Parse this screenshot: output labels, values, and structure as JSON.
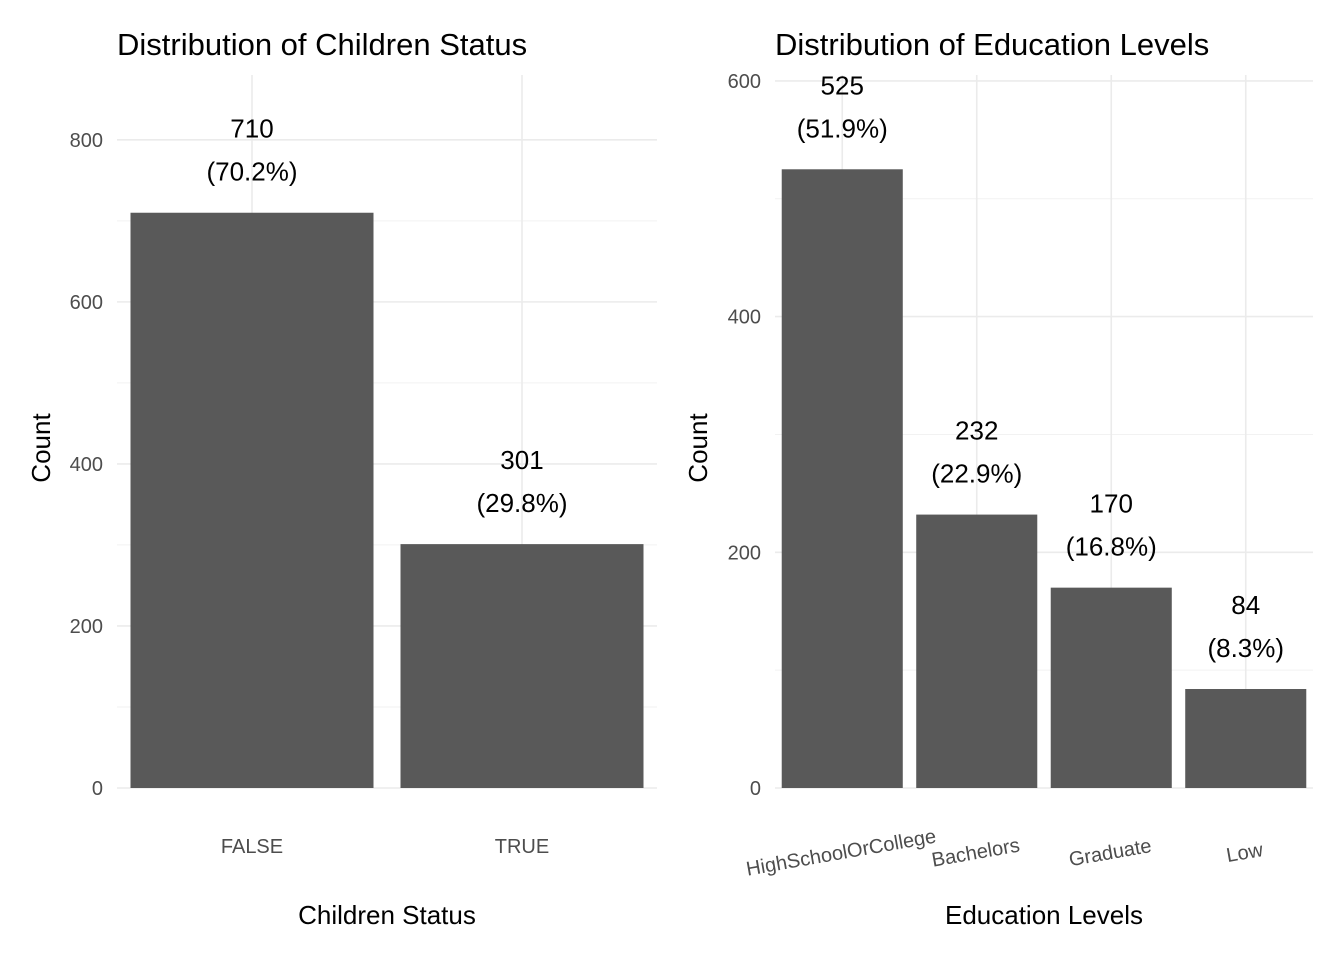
{
  "chart_data": [
    {
      "type": "bar",
      "title": "Distribution of Children Status",
      "xlabel": "Children Status",
      "ylabel": "Count",
      "categories": [
        "FALSE",
        "TRUE"
      ],
      "values": [
        710,
        301
      ],
      "labels": [
        "710",
        "301"
      ],
      "percent_labels": [
        "(70.2%)",
        "(29.8%)"
      ],
      "ylim": [
        0,
        880
      ],
      "yticks": [
        0,
        200,
        400,
        600,
        800
      ],
      "ytick_labels": [
        "0",
        "200",
        "400",
        "600",
        "800"
      ],
      "xtick_rotation": 0,
      "grid": true,
      "bar_color": "#595959"
    },
    {
      "type": "bar",
      "title": "Distribution of Education Levels",
      "xlabel": "Education Levels",
      "ylabel": "Count",
      "categories": [
        "HighSchoolOrCollege",
        "Bachelors",
        "Graduate",
        "Low"
      ],
      "values": [
        525,
        232,
        170,
        84
      ],
      "labels": [
        "525",
        "232",
        "170",
        "84"
      ],
      "percent_labels": [
        "(51.9%)",
        "(22.9%)",
        "(16.8%)",
        "(8.3%)"
      ],
      "ylim": [
        0,
        605
      ],
      "yticks": [
        0,
        200,
        400,
        600
      ],
      "ytick_labels": [
        "0",
        "200",
        "400",
        "600"
      ],
      "xtick_rotation": -10,
      "grid": true,
      "bar_color": "#595959"
    }
  ]
}
